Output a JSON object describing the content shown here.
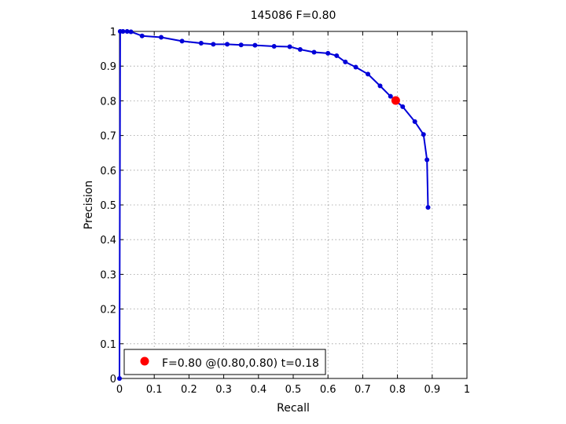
{
  "chart_data": {
    "type": "line",
    "title": "145086 F=0.80",
    "xlabel": "Recall",
    "ylabel": "Precision",
    "xlim": [
      0,
      1
    ],
    "ylim": [
      0,
      1
    ],
    "grid": true,
    "x_ticks": [
      "0",
      "0.1",
      "0.2",
      "0.3",
      "0.4",
      "0.5",
      "0.6",
      "0.7",
      "0.8",
      "0.9",
      "1"
    ],
    "y_ticks": [
      "0",
      "0.1",
      "0.2",
      "0.3",
      "0.4",
      "0.5",
      "0.6",
      "0.7",
      "0.8",
      "0.9",
      "1"
    ],
    "series": [
      {
        "color": "#0000d8",
        "marker": "dot",
        "points": [
          [
            0.0,
            0.0
          ],
          [
            0.002,
            1.0
          ],
          [
            0.01,
            1.0
          ],
          [
            0.022,
            1.0
          ],
          [
            0.033,
            0.999
          ],
          [
            0.065,
            0.987
          ],
          [
            0.12,
            0.983
          ],
          [
            0.18,
            0.972
          ],
          [
            0.235,
            0.966
          ],
          [
            0.27,
            0.963
          ],
          [
            0.31,
            0.963
          ],
          [
            0.35,
            0.961
          ],
          [
            0.39,
            0.96
          ],
          [
            0.445,
            0.957
          ],
          [
            0.49,
            0.956
          ],
          [
            0.52,
            0.948
          ],
          [
            0.56,
            0.94
          ],
          [
            0.6,
            0.937
          ],
          [
            0.625,
            0.93
          ],
          [
            0.65,
            0.912
          ],
          [
            0.68,
            0.897
          ],
          [
            0.715,
            0.877
          ],
          [
            0.75,
            0.843
          ],
          [
            0.78,
            0.813
          ],
          [
            0.815,
            0.783
          ],
          [
            0.85,
            0.74
          ],
          [
            0.875,
            0.703
          ],
          [
            0.885,
            0.63
          ],
          [
            0.888,
            0.493
          ]
        ]
      }
    ],
    "best_point": {
      "x": 0.795,
      "y": 0.801,
      "color": "#ff0000"
    },
    "legend": {
      "position": "bottom-left",
      "entries": [
        {
          "label": "F=0.80 @(0.80,0.80) t=0.18",
          "color": "#ff0000"
        }
      ]
    }
  }
}
